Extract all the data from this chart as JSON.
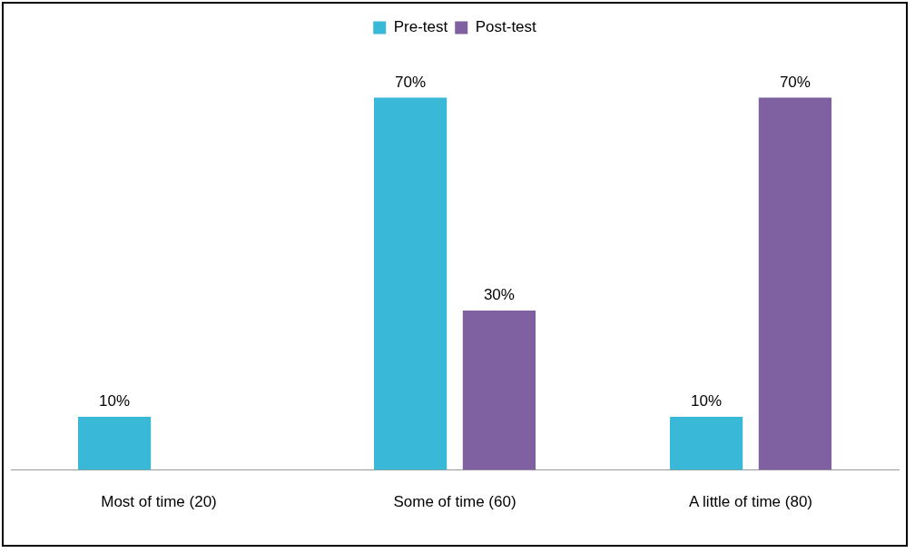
{
  "chart_data": {
    "type": "bar",
    "categories": [
      "Most of time (20)",
      "Some of time (60)",
      "A little of time (80)"
    ],
    "series": [
      {
        "name": "Pre-test",
        "color": "#3ab8d8",
        "values": [
          10,
          70,
          10
        ],
        "value_labels": [
          "10%",
          "70%",
          "10%"
        ]
      },
      {
        "name": "Post-test",
        "color": "#7f60a0",
        "values": [
          null,
          30,
          70
        ],
        "value_labels": [
          null,
          "30%",
          "70%"
        ]
      }
    ],
    "legend": "top",
    "grid": false
  }
}
